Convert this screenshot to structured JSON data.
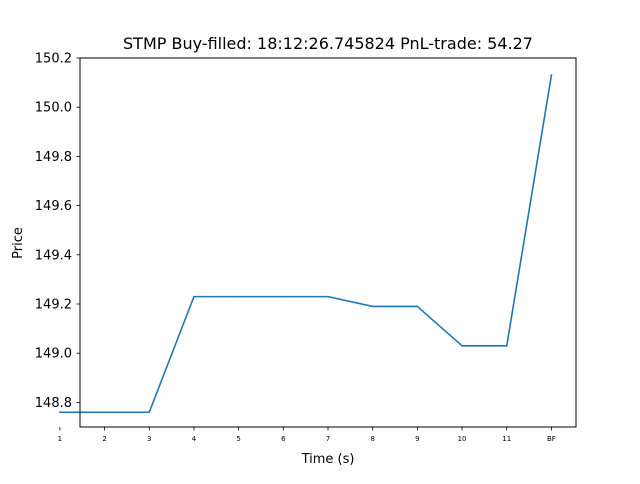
{
  "chart_data": {
    "type": "line",
    "title": "STMP  Buy-filled:  18:12:26.745824  PnL-trade:  54.27",
    "xlabel": "Time (s)",
    "ylabel": "Price",
    "categories": [
      "1",
      "2",
      "3",
      "4",
      "5",
      "6",
      "7",
      "8",
      "9",
      "10",
      "11",
      "BF"
    ],
    "series": [
      {
        "values": [
          148.76,
          148.76,
          148.76,
          149.23,
          149.23,
          149.23,
          149.23,
          149.19,
          149.19,
          149.03,
          149.03,
          150.13
        ]
      }
    ],
    "ylim": [
      148.7,
      150.2
    ],
    "yticks": [
      "148.8",
      "149.0",
      "149.2",
      "149.4",
      "149.6",
      "149.8",
      "150.0",
      "150.2"
    ],
    "line_color": "#1f77b4",
    "grid": false,
    "legend": "none"
  }
}
